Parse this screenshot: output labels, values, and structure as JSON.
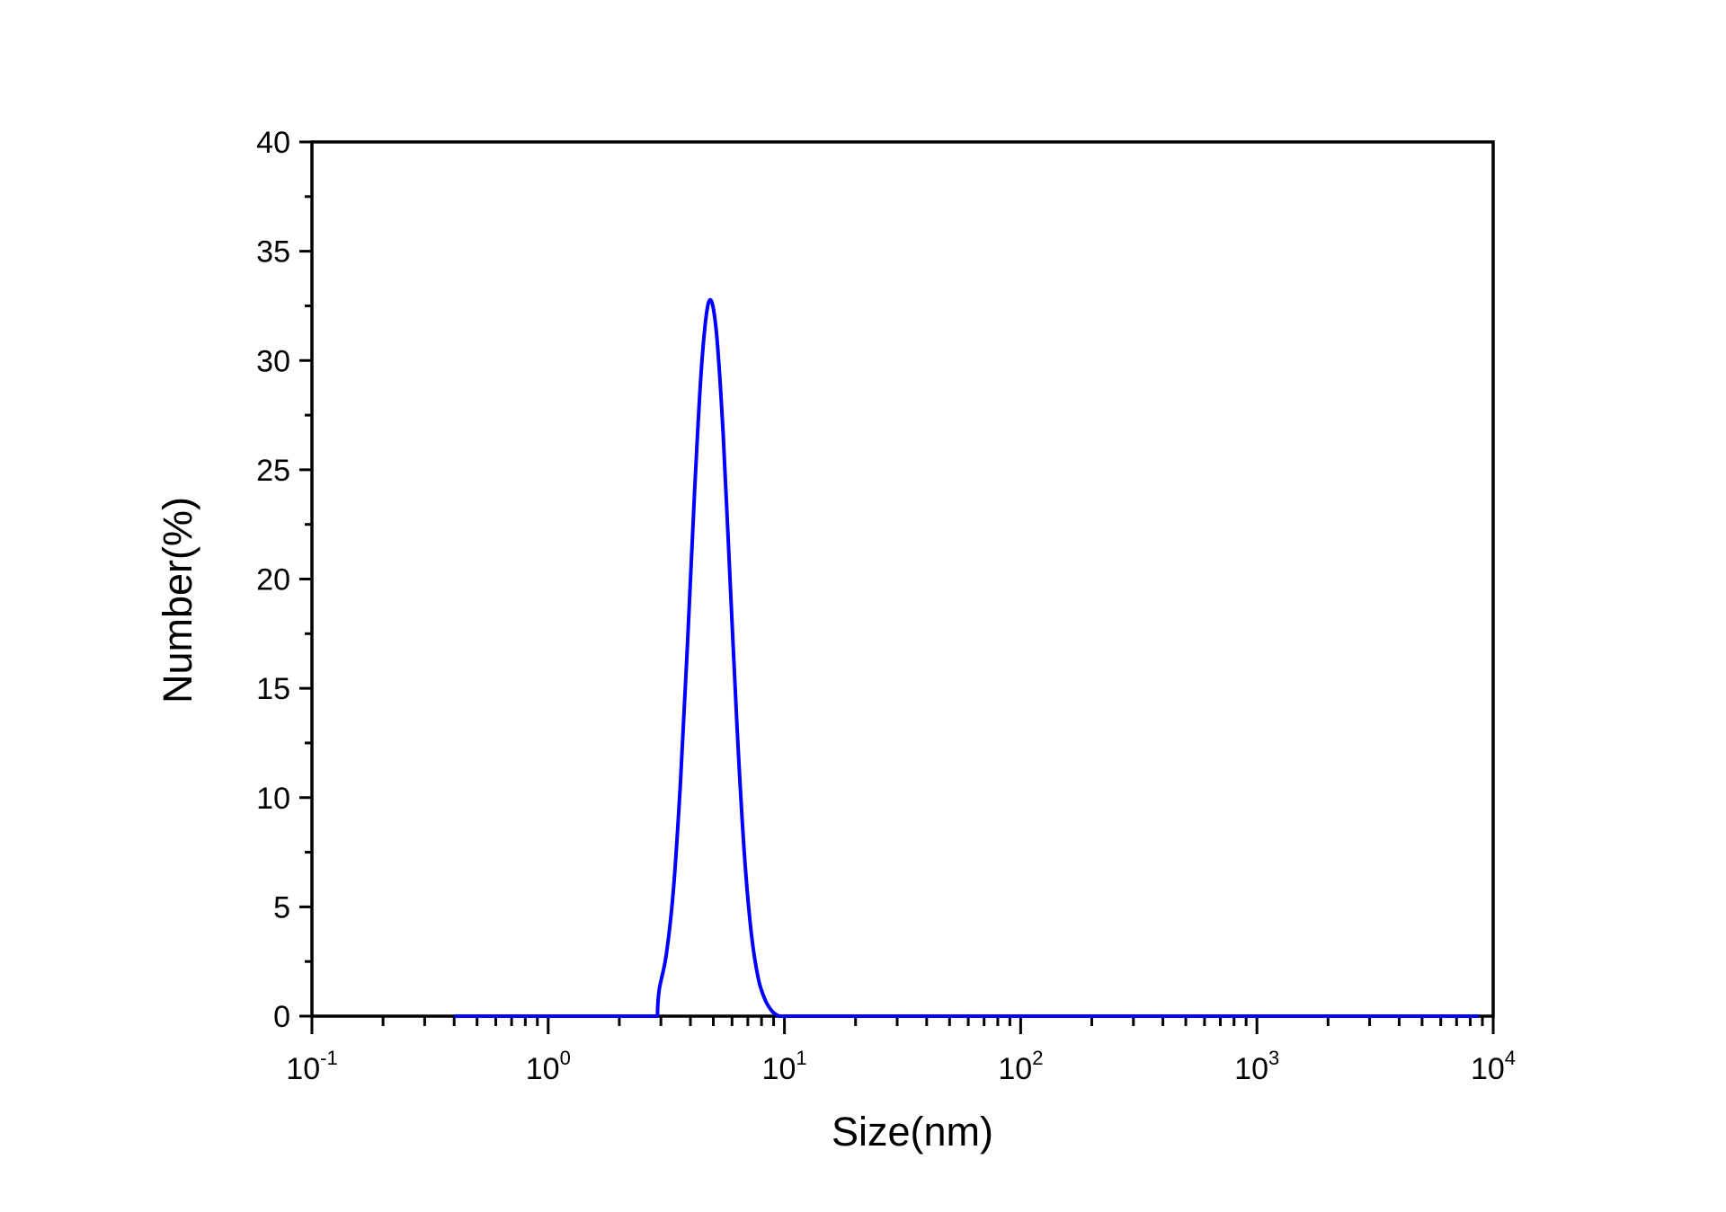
{
  "chart_data": {
    "type": "line",
    "title": "",
    "xlabel": "Size(nm)",
    "ylabel": "Number(%)",
    "xscale": "log",
    "xlim": [
      0.1,
      10000
    ],
    "ylim": [
      0,
      40
    ],
    "x_ticks": [
      {
        "base": "10",
        "exp": "-1",
        "value": 0.1
      },
      {
        "base": "10",
        "exp": "0",
        "value": 1
      },
      {
        "base": "10",
        "exp": "1",
        "value": 10
      },
      {
        "base": "10",
        "exp": "2",
        "value": 100
      },
      {
        "base": "10",
        "exp": "3",
        "value": 1000
      },
      {
        "base": "10",
        "exp": "4",
        "value": 10000
      }
    ],
    "y_ticks": [
      "0",
      "5",
      "10",
      "15",
      "20",
      "25",
      "30",
      "35",
      "40"
    ],
    "grid": false,
    "legend": "none",
    "series": [
      {
        "name": "Number",
        "color": "#0000ff",
        "x": [
          0.4,
          2.9,
          2.95,
          3.16,
          3.39,
          3.63,
          3.89,
          4.17,
          4.47,
          4.79,
          5.13,
          5.5,
          5.89,
          6.31,
          6.76,
          7.24,
          7.76,
          8.32,
          8.91,
          9.5,
          8700
        ],
        "y": [
          0,
          0,
          1.2,
          2.8,
          5.8,
          10.7,
          17.1,
          24.1,
          29.9,
          32.7,
          31.5,
          26.7,
          19.9,
          13.1,
          7.5,
          3.8,
          1.7,
          0.7,
          0.2,
          0,
          0
        ]
      }
    ]
  }
}
